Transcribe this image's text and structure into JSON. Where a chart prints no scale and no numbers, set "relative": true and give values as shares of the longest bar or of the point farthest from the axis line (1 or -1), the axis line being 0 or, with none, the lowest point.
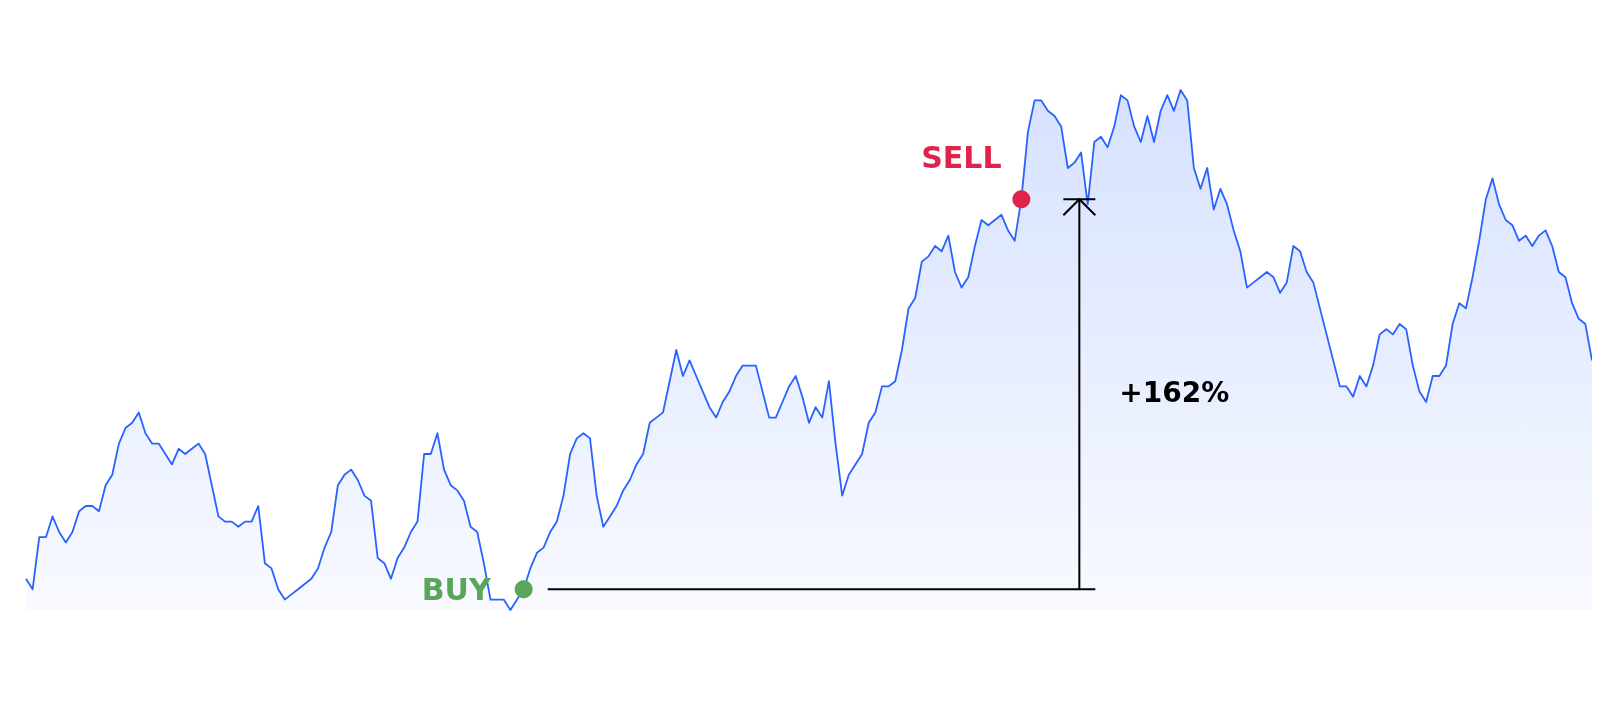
{
  "chart_data": {
    "type": "area",
    "relative": true,
    "color": "#2962ff",
    "categories": [
      null,
      null,
      null,
      null,
      null,
      null,
      null,
      null,
      null,
      null,
      null,
      null,
      null,
      null,
      null,
      null,
      null,
      null,
      null,
      null,
      null,
      null,
      null,
      null,
      null,
      null,
      null,
      null,
      null,
      null,
      null,
      null,
      null,
      null,
      null,
      null,
      null,
      null,
      null,
      null,
      null,
      null,
      null,
      null,
      null,
      null,
      null,
      null,
      null,
      null,
      null,
      null,
      null,
      null,
      null,
      null,
      null,
      null,
      null,
      null,
      null,
      null,
      null,
      null,
      null,
      null,
      null,
      null,
      null,
      null,
      null,
      null,
      null,
      null,
      null,
      null,
      null,
      null,
      null,
      null,
      null,
      null,
      null,
      null,
      null,
      null,
      null,
      null,
      null,
      null,
      null,
      null,
      null,
      null,
      null,
      null,
      null,
      null,
      null,
      null,
      null,
      null,
      null,
      null,
      null,
      null,
      null,
      null,
      null,
      null,
      null,
      null,
      null,
      null,
      null,
      null,
      null,
      null,
      null,
      null,
      null,
      null,
      null,
      null,
      null,
      null,
      null,
      null,
      null,
      null,
      null,
      null,
      null,
      null,
      null,
      null,
      null,
      null,
      null,
      null,
      null,
      null,
      null,
      null,
      null,
      null,
      null,
      null,
      null,
      null,
      null,
      null,
      null,
      null,
      null,
      null,
      null,
      null,
      null,
      null,
      null,
      null,
      null,
      null,
      null,
      null,
      null,
      null,
      null,
      null,
      null,
      null,
      null,
      null,
      null,
      null,
      null,
      null,
      null,
      null,
      null,
      null,
      null,
      null,
      null,
      null,
      null,
      null,
      null,
      null,
      null,
      null,
      null,
      null,
      null,
      null,
      null,
      null,
      null,
      null,
      null,
      null,
      null,
      null,
      null,
      null,
      null,
      null,
      null,
      null,
      null,
      null,
      null,
      null,
      null,
      null,
      null,
      null,
      null,
      null,
      null,
      null,
      null,
      null,
      null,
      null,
      null,
      null,
      null,
      null,
      null,
      null,
      null,
      null,
      null,
      null,
      null
    ],
    "values": [
      0.06,
      0.04,
      0.14,
      0.14,
      0.18,
      0.15,
      0.13,
      0.15,
      0.19,
      0.2,
      0.2,
      0.19,
      0.24,
      0.26,
      0.32,
      0.35,
      0.36,
      0.38,
      0.34,
      0.32,
      0.32,
      0.3,
      0.28,
      0.31,
      0.3,
      0.31,
      0.32,
      0.3,
      0.24,
      0.18,
      0.17,
      0.17,
      0.16,
      0.17,
      0.17,
      0.2,
      0.09,
      0.08,
      0.04,
      0.02,
      0.03,
      0.04,
      0.05,
      0.06,
      0.08,
      0.12,
      0.15,
      0.24,
      0.26,
      0.27,
      0.25,
      0.22,
      0.21,
      0.1,
      0.09,
      0.06,
      0.1,
      0.12,
      0.15,
      0.17,
      0.3,
      0.3,
      0.34,
      0.27,
      0.24,
      0.23,
      0.21,
      0.16,
      0.15,
      0.09,
      0.02,
      0.02,
      0.02,
      0.0,
      0.02,
      0.04,
      0.08,
      0.11,
      0.12,
      0.15,
      0.17,
      0.22,
      0.3,
      0.33,
      0.34,
      0.33,
      0.22,
      0.16,
      0.18,
      0.2,
      0.23,
      0.25,
      0.28,
      0.3,
      0.36,
      0.37,
      0.38,
      0.44,
      0.5,
      0.45,
      0.48,
      0.45,
      0.42,
      0.39,
      0.37,
      0.4,
      0.42,
      0.45,
      0.47,
      0.47,
      0.47,
      0.42,
      0.37,
      0.37,
      0.4,
      0.43,
      0.45,
      0.41,
      0.36,
      0.39,
      0.37,
      0.44,
      0.32,
      0.22,
      0.26,
      0.28,
      0.3,
      0.36,
      0.38,
      0.43,
      0.43,
      0.44,
      0.5,
      0.58,
      0.6,
      0.67,
      0.68,
      0.7,
      0.69,
      0.72,
      0.65,
      0.62,
      0.64,
      0.7,
      0.75,
      0.74,
      0.75,
      0.76,
      0.73,
      0.71,
      0.79,
      0.92,
      0.98,
      0.98,
      0.96,
      0.95,
      0.93,
      0.85,
      0.86,
      0.88,
      0.78,
      0.9,
      0.91,
      0.89,
      0.93,
      0.99,
      0.98,
      0.93,
      0.9,
      0.95,
      0.9,
      0.96,
      0.99,
      0.96,
      1.0,
      0.98,
      0.85,
      0.81,
      0.85,
      0.77,
      0.81,
      0.78,
      0.73,
      0.69,
      0.62,
      0.63,
      0.64,
      0.65,
      0.64,
      0.61,
      0.63,
      0.7,
      0.69,
      0.65,
      0.63,
      0.58,
      0.53,
      0.48,
      0.43,
      0.43,
      0.41,
      0.45,
      0.43,
      0.47,
      0.53,
      0.54,
      0.53,
      0.55,
      0.54,
      0.47,
      0.42,
      0.4,
      0.45,
      0.45,
      0.47,
      0.55,
      0.59,
      0.58,
      0.64,
      0.71,
      0.79,
      0.83,
      0.78,
      0.75,
      0.74,
      0.71,
      0.72,
      0.7,
      0.72,
      0.73,
      0.7,
      0.65,
      0.64,
      0.59,
      0.56,
      0.55,
      0.48
    ],
    "annotations": [
      "BUY",
      "SELL",
      "+162%"
    ]
  }
}
